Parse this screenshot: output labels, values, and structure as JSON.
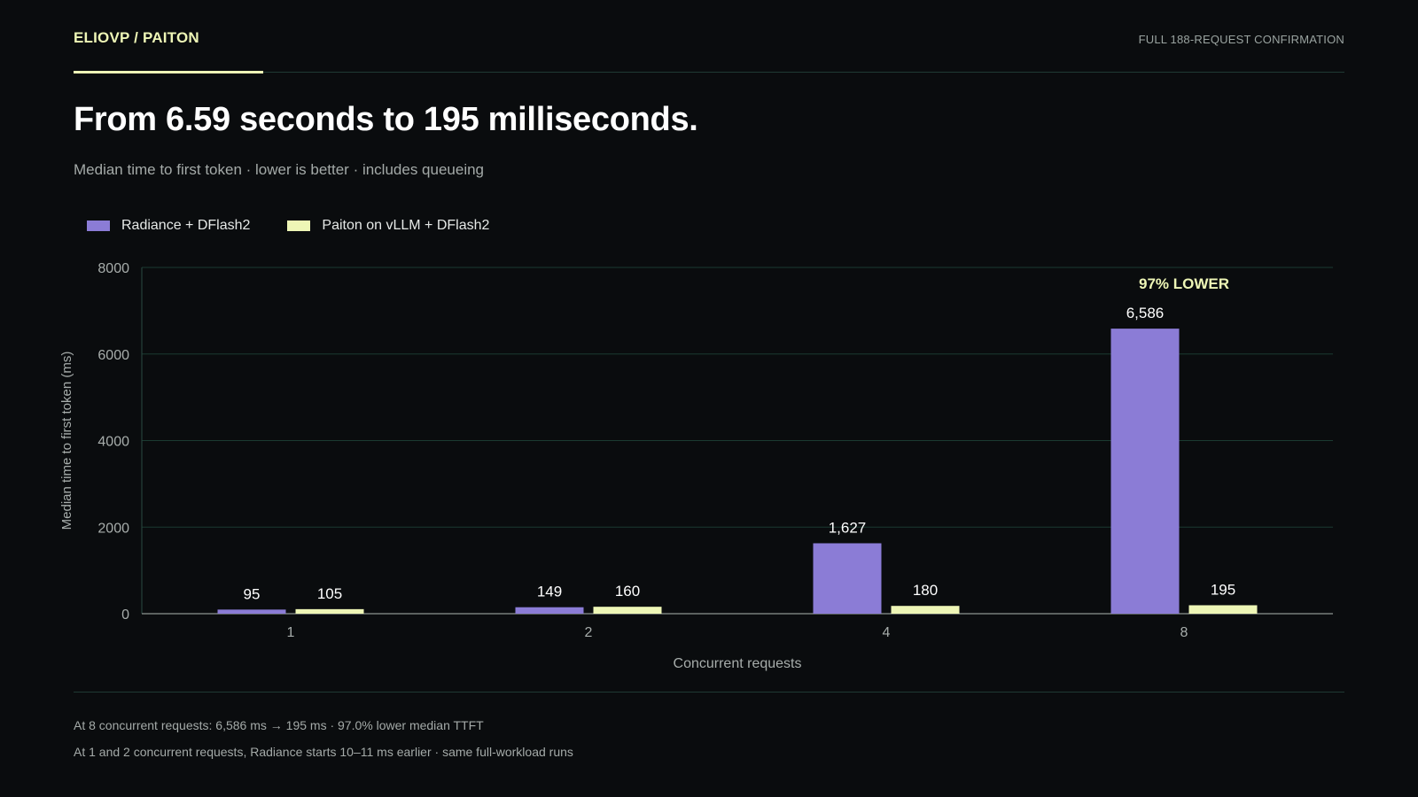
{
  "header": {
    "brand": "ELIOVP / PAITON",
    "tagline": "FULL 188-REQUEST CONFIRMATION"
  },
  "headline": "From 6.59 seconds to 195 milliseconds.",
  "subhead": "Median time to first token · lower is better · includes queueing",
  "chart_data": {
    "type": "bar",
    "xlabel": "Concurrent requests",
    "ylabel": "Median time to first token (ms)",
    "ylim": [
      0,
      8000
    ],
    "yticks": [
      0,
      2000,
      4000,
      6000,
      8000
    ],
    "grid": true,
    "legend_position": "top-left",
    "categories": [
      "1",
      "2",
      "4",
      "8"
    ],
    "series": [
      {
        "name": "Radiance + DFlash2",
        "color": "#8b7cd6",
        "values": [
          95,
          149,
          1627,
          6586
        ],
        "labels": [
          "95",
          "149",
          "1,627",
          "6,586"
        ]
      },
      {
        "name": "Paiton on vLLM + DFlash2",
        "color": "#eef6b6",
        "values": [
          105,
          160,
          180,
          195
        ],
        "labels": [
          "105",
          "160",
          "180",
          "195"
        ]
      }
    ],
    "annotation": {
      "category": "8",
      "text": "97% LOWER",
      "color": "#eef6b6"
    }
  },
  "footer": {
    "note1": "At 8 concurrent requests: 6,586 ms → 195 ms · 97.0% lower median TTFT",
    "note2": "At 1 and 2 concurrent requests, Radiance starts 10–11 ms earlier · same full-workload runs"
  }
}
